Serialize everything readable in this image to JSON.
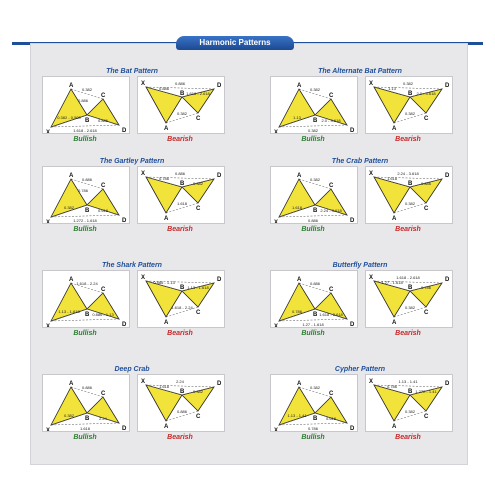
{
  "header": {
    "title": "Harmonic Patterns"
  },
  "labels": {
    "bullish": "Bullish",
    "bearish": "Bearish"
  },
  "colors": {
    "fill": "#f2e33a",
    "stroke": "#222222",
    "dashed": "#555555",
    "bull": "#2e7d32",
    "bear": "#c62828",
    "accent": "#1f4f9a"
  },
  "patterns": [
    {
      "title": "The Bat Pattern",
      "bull_ratios": [
        "0.382 - 0.500",
        "0.382",
        "0.886",
        "1.618 - 2.618",
        "0.886"
      ],
      "bear_ratios": [
        "0.886",
        "0.382",
        "1.618 - 2.618",
        "0.886"
      ]
    },
    {
      "title": "The Alternate Bat Pattern",
      "bull_ratios": [
        "1.13",
        "0.382",
        "2.0 - 3.618",
        "0.382"
      ],
      "bear_ratios": [
        "1.13",
        "0.382",
        "2.0 - 3.618",
        "0.382"
      ]
    },
    {
      "title": "The Gartley Pattern",
      "bull_ratios": [
        "0.382",
        "0.886",
        "0.618",
        "1.272 - 1.618",
        "0.786"
      ],
      "bear_ratios": [
        "0.786",
        "1.618",
        "0.382",
        "0.886"
      ]
    },
    {
      "title": "The Crab Pattern",
      "bull_ratios": [
        "1.618",
        "0.382",
        "2.24 - 3.618",
        "0.886"
      ],
      "bear_ratios": [
        "1.618",
        "0.382",
        "0.886",
        "2.24 - 3.618"
      ]
    },
    {
      "title": "The Shark Pattern",
      "bull_ratios": [
        "1.13 - 1.618",
        "1.618 - 2.24",
        "0.886 - 1.13"
      ],
      "bear_ratios": [
        "0.886 - 1.13",
        "1.618 - 2.24",
        "1.13 - 1.618"
      ]
    },
    {
      "title": "Butterfly Pattern",
      "bull_ratios": [
        "0.786",
        "0.886",
        "1.618 - 2.618",
        "1.27 - 1.618"
      ],
      "bear_ratios": [
        "1.27 - 1.618",
        "0.382",
        "0.786",
        "1.618 - 2.618"
      ]
    },
    {
      "title": "Deep Crab",
      "bull_ratios": [
        "0.382",
        "0.886",
        "2.24",
        "1.618"
      ],
      "bear_ratios": [
        "1.618",
        "0.886",
        "0.382",
        "2.24"
      ]
    },
    {
      "title": "Cypher Pattern",
      "bull_ratios": [
        "1.13 - 1.41",
        "0.382",
        "0.618",
        "0.786"
      ],
      "bear_ratios": [
        "0.786",
        "0.382",
        "1.272 - 1.41",
        "1.13 - 1.41"
      ]
    }
  ]
}
